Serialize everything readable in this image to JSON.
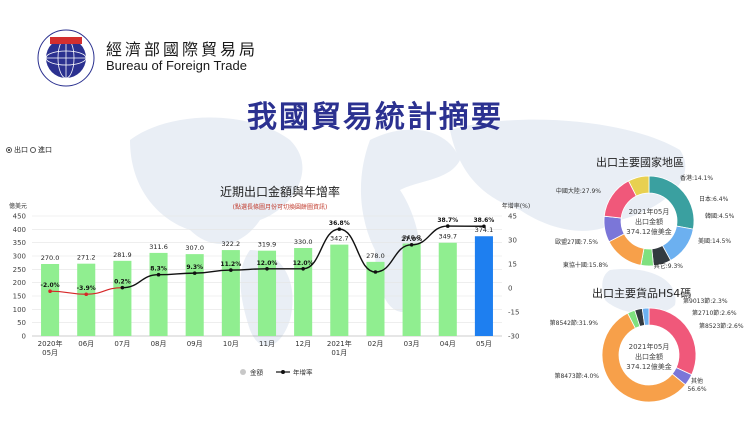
{
  "header": {
    "logo_text": "國際貿易局 BUREAU OF FOREIGN TRADE",
    "org_name_zh": "經濟部國際貿易局",
    "org_name_en": "Bureau of Foreign Trade",
    "page_title": "我國貿易統計摘要"
  },
  "toggle": {
    "export_label": "出口",
    "import_label": "進口",
    "selected": "export"
  },
  "colors": {
    "title": "#2b3190",
    "bar": "#90ee90",
    "bar_highlight": "#1e7ff0",
    "line": "#111111",
    "line_early": "#d62728"
  },
  "chart_data": [
    {
      "type": "bar",
      "title": "近期出口金額與年增率",
      "subtitle": "(點選長條圖月份可切換圓餅圖資訊)",
      "ylabel_left": "億美元",
      "ylabel_right": "年增率(%)",
      "ylim": [
        0,
        450
      ],
      "y2lim": [
        -30,
        45
      ],
      "yticks": [
        "0",
        "50",
        "100",
        "150",
        "200",
        "250",
        "300",
        "350",
        "400",
        "450"
      ],
      "y2ticks": [
        "-30",
        "-15",
        "0",
        "15",
        "30",
        "45"
      ],
      "categories": [
        "2020年\n05月",
        "06月",
        "07月",
        "08月",
        "09月",
        "10月",
        "11月",
        "12月",
        "2021年\n01月",
        "02月",
        "03月",
        "04月",
        "05月"
      ],
      "category_lines": [
        [
          "2020年",
          "05月"
        ],
        [
          "06月"
        ],
        [
          "07月"
        ],
        [
          "08月"
        ],
        [
          "09月"
        ],
        [
          "10月"
        ],
        [
          "11月"
        ],
        [
          "12月"
        ],
        [
          "2021年",
          "01月"
        ],
        [
          "02月"
        ],
        [
          "03月"
        ],
        [
          "04月"
        ],
        [
          "05月"
        ]
      ],
      "series": [
        {
          "name": "金額",
          "type": "bar",
          "values": [
            270.0,
            271.2,
            281.9,
            311.6,
            307.0,
            322.2,
            319.9,
            330.0,
            342.7,
            278.0,
            346.8,
            349.7,
            374.1
          ],
          "labels": [
            "270.0",
            "271.2",
            "281.9",
            "311.6",
            "307.0",
            "322.2",
            "319.9",
            "330.0",
            "342.7",
            "278.0",
            "346.8",
            "349.7",
            "374.1"
          ]
        },
        {
          "name": "年增率",
          "type": "line",
          "values": [
            -2.0,
            -3.9,
            0.2,
            8.3,
            9.3,
            11.2,
            12.0,
            12.0,
            36.8,
            10.0,
            27.0,
            38.7,
            38.6
          ],
          "labels": [
            "-2.0%",
            "-3.9%",
            "0.2%",
            "8.3%",
            "9.3%",
            "11.2%",
            "12.0%",
            "12.0%",
            "36.8%",
            "",
            "27.0%",
            "38.7%",
            "38.6%"
          ]
        }
      ],
      "legend": [
        "金額",
        "年增率"
      ],
      "legend_position": "bottom"
    },
    {
      "type": "pie",
      "title": "出口主要國家地區",
      "center_lines": [
        "2021年05月",
        "出口金額",
        "374.12億美金"
      ],
      "slices": [
        {
          "label": "中國大陸:27.9%",
          "value": 27.9,
          "color": "#3aa0a0"
        },
        {
          "label": "香港:14.1%",
          "value": 14.1,
          "color": "#6cb0f0"
        },
        {
          "label": "日本:6.4%",
          "value": 6.4,
          "color": "#333a40"
        },
        {
          "label": "韓國:4.5%",
          "value": 4.5,
          "color": "#7fe07f"
        },
        {
          "label": "美國:14.5%",
          "value": 14.5,
          "color": "#f7a04a"
        },
        {
          "label": "其它:9.3%",
          "value": 9.3,
          "color": "#7b76d8"
        },
        {
          "label": "東協十國:15.8%",
          "value": 15.8,
          "color": "#f0587a"
        },
        {
          "label": "歐盟27國:7.5%",
          "value": 7.5,
          "color": "#e8d050"
        }
      ]
    },
    {
      "type": "pie",
      "title": "出口主要貨品HS4碼",
      "center_lines": [
        "2021年05月",
        "出口金額",
        "374.12億美金"
      ],
      "slices": [
        {
          "label": "第8542節:31.9%",
          "value": 31.9,
          "color": "#f0587a"
        },
        {
          "label": "第8473節:4.0%",
          "value": 4.0,
          "color": "#7b76d8"
        },
        {
          "label": "其他\n56.6%",
          "value": 56.6,
          "color": "#f7a04a"
        },
        {
          "label": "第8523節:2.6%",
          "value": 2.6,
          "color": "#7fe07f"
        },
        {
          "label": "第2710節:2.6%",
          "value": 2.6,
          "color": "#333a40"
        },
        {
          "label": "第9013節:2.3%",
          "value": 2.3,
          "color": "#6cb0f0"
        }
      ]
    }
  ]
}
